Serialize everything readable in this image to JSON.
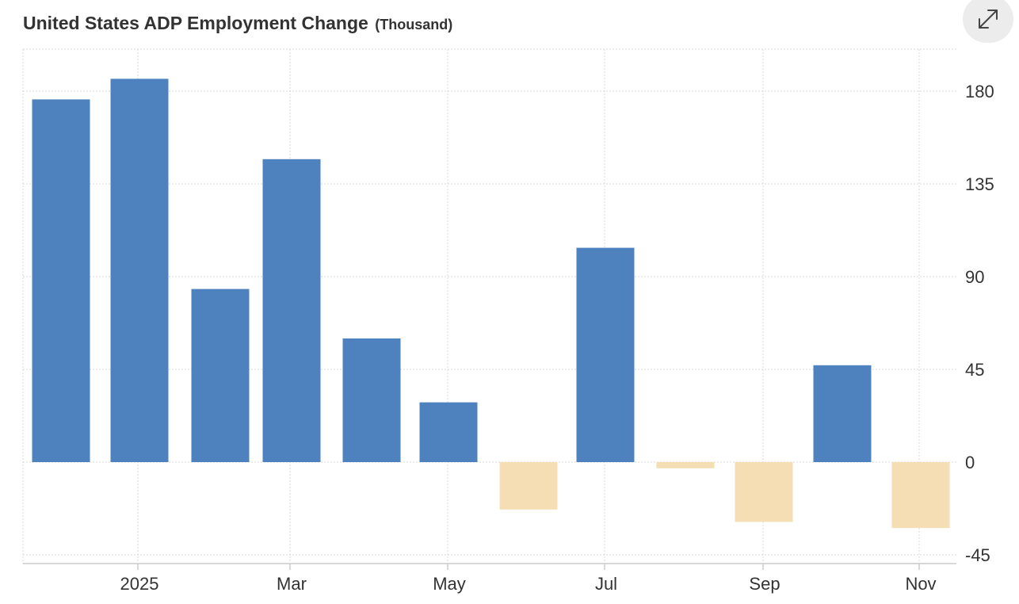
{
  "header": {
    "title": "United States ADP Employment Change",
    "unit": "(Thousand)"
  },
  "expand_button": {
    "icon": "expand-arrows-icon"
  },
  "colors": {
    "positive": "#4d82bf",
    "negative": "#f5deb3",
    "grid": "#d9d9d9",
    "axis": "#cccccc",
    "text": "#333333"
  },
  "chart_data": {
    "type": "bar",
    "title": "United States ADP Employment Change",
    "unit": "(Thousand)",
    "x_tick_labels": [
      "2025",
      "Mar",
      "May",
      "Jul",
      "Sep",
      "Nov"
    ],
    "y_ticks": [
      180,
      135,
      90,
      45,
      0,
      -45
    ],
    "ylim": [
      -50,
      200
    ],
    "grid": true,
    "y_axis_position": "right",
    "series": [
      {
        "points": [
          {
            "date": "2024-11",
            "value": 176
          },
          {
            "date": "2024-12",
            "value": 186
          },
          {
            "date": "2025-01",
            "value": 84
          },
          {
            "date": "2025-02",
            "value": 147
          },
          {
            "date": "2025-03",
            "value": 60
          },
          {
            "date": "2025-04",
            "value": 29
          },
          {
            "date": "2025-05",
            "value": -23
          },
          {
            "date": "2025-06",
            "value": 104
          },
          {
            "date": "2025-07",
            "value": -3
          },
          {
            "date": "2025-08",
            "value": -29
          },
          {
            "date": "2025-09",
            "value": 47
          },
          {
            "date": "2025-10",
            "value": -32
          }
        ]
      }
    ]
  }
}
